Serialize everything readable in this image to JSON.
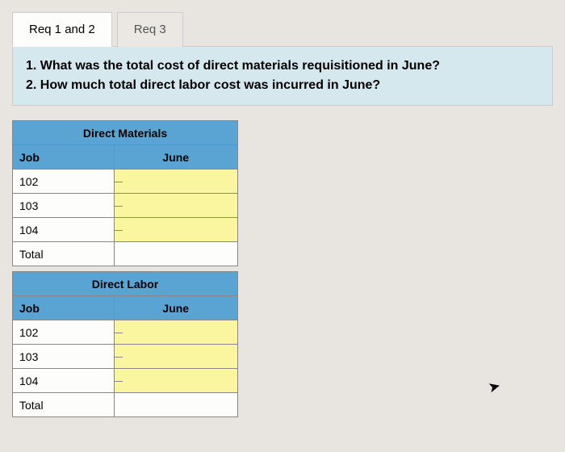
{
  "tabs": {
    "active": "Req 1 and 2",
    "inactive": "Req 3"
  },
  "questions": {
    "line1": "1. What was the total cost of direct materials requisitioned in June?",
    "line2": "2. How much total direct labor cost was incurred in June?"
  },
  "materials_table": {
    "title": "Direct Materials",
    "job_header": "Job",
    "month_header": "June",
    "rows": [
      {
        "job": "102",
        "value": ""
      },
      {
        "job": "103",
        "value": ""
      },
      {
        "job": "104",
        "value": ""
      }
    ],
    "total_label": "Total",
    "total_value": ""
  },
  "labor_table": {
    "title": "Direct Labor",
    "job_header": "Job",
    "month_header": "June",
    "rows": [
      {
        "job": "102",
        "value": ""
      },
      {
        "job": "103",
        "value": ""
      },
      {
        "job": "104",
        "value": ""
      }
    ],
    "total_label": "Total",
    "total_value": ""
  },
  "colors": {
    "header_bg": "#5aa4d4",
    "input_bg": "#faf69f",
    "question_bg": "#d5e8ee",
    "page_bg": "#e8e5e0"
  }
}
